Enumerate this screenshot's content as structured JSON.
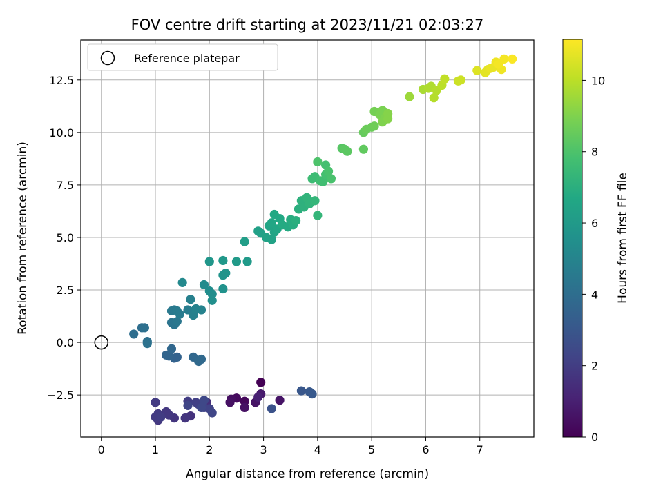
{
  "chart_data": {
    "type": "scatter",
    "title": "FOV centre drift starting at 2023/11/21 02:03:27",
    "xlabel": "Angular distance from reference (arcmin)",
    "ylabel": "Rotation from reference (arcmin)",
    "xlim": [
      -0.38,
      8.0
    ],
    "ylim": [
      -4.5,
      14.4
    ],
    "xticks": [
      0,
      1,
      2,
      3,
      4,
      5,
      6,
      7
    ],
    "yticks": [
      -2.5,
      0.0,
      2.5,
      5.0,
      7.5,
      10.0,
      12.5
    ],
    "ytick_labels": [
      "−2.5",
      "0.0",
      "2.5",
      "5.0",
      "7.5",
      "10.0",
      "12.5"
    ],
    "grid": true,
    "legend_position": "top-left",
    "legend_entries": [
      "Reference platepar"
    ],
    "reference_point": {
      "x": 0,
      "y": 0
    },
    "colormap": "viridis",
    "colorbar": {
      "label": "Hours from first FF file",
      "range": [
        0,
        11.15
      ],
      "ticks": [
        0,
        2,
        4,
        6,
        8,
        10
      ]
    },
    "points": [
      {
        "x": 2.95,
        "y": -1.9,
        "t": 0.0
      },
      {
        "x": 2.65,
        "y": -2.8,
        "t": 0.2
      },
      {
        "x": 2.5,
        "y": -2.65,
        "t": 0.3
      },
      {
        "x": 2.4,
        "y": -2.7,
        "t": 0.4
      },
      {
        "x": 2.38,
        "y": -2.85,
        "t": 0.5
      },
      {
        "x": 2.65,
        "y": -3.1,
        "t": 0.5
      },
      {
        "x": 2.85,
        "y": -2.85,
        "t": 0.6
      },
      {
        "x": 3.3,
        "y": -2.75,
        "t": 0.6
      },
      {
        "x": 2.95,
        "y": -2.45,
        "t": 0.8
      },
      {
        "x": 2.9,
        "y": -2.6,
        "t": 1.0
      },
      {
        "x": 1.95,
        "y": -2.85,
        "t": 1.5
      },
      {
        "x": 1.65,
        "y": -3.5,
        "t": 1.6
      },
      {
        "x": 1.55,
        "y": -3.6,
        "t": 1.7
      },
      {
        "x": 1.35,
        "y": -3.6,
        "t": 1.7
      },
      {
        "x": 1.25,
        "y": -3.45,
        "t": 1.8
      },
      {
        "x": 1.2,
        "y": -3.3,
        "t": 1.8
      },
      {
        "x": 1.05,
        "y": -3.7,
        "t": 1.8
      },
      {
        "x": 1.0,
        "y": -3.55,
        "t": 1.9
      },
      {
        "x": 1.05,
        "y": -3.4,
        "t": 1.9
      },
      {
        "x": 1.0,
        "y": -2.85,
        "t": 1.9
      },
      {
        "x": 1.1,
        "y": -3.55,
        "t": 2.0
      },
      {
        "x": 1.6,
        "y": -2.8,
        "t": 2.0
      },
      {
        "x": 1.75,
        "y": -2.85,
        "t": 2.1
      },
      {
        "x": 1.8,
        "y": -2.95,
        "t": 2.1
      },
      {
        "x": 1.9,
        "y": -3.1,
        "t": 2.2
      },
      {
        "x": 2.0,
        "y": -3.15,
        "t": 2.2
      },
      {
        "x": 2.05,
        "y": -3.35,
        "t": 2.3
      },
      {
        "x": 1.6,
        "y": -3.0,
        "t": 2.3
      },
      {
        "x": 1.85,
        "y": -3.1,
        "t": 2.4
      },
      {
        "x": 1.9,
        "y": -2.75,
        "t": 2.4
      },
      {
        "x": 3.15,
        "y": -3.15,
        "t": 2.8
      },
      {
        "x": 3.7,
        "y": -2.3,
        "t": 3.0
      },
      {
        "x": 3.85,
        "y": -2.35,
        "t": 3.1
      },
      {
        "x": 3.9,
        "y": -2.45,
        "t": 3.1
      },
      {
        "x": 1.4,
        "y": -0.7,
        "t": 3.5
      },
      {
        "x": 1.35,
        "y": -0.75,
        "t": 3.5
      },
      {
        "x": 1.25,
        "y": -0.65,
        "t": 3.6
      },
      {
        "x": 1.2,
        "y": -0.6,
        "t": 3.6
      },
      {
        "x": 1.3,
        "y": -0.3,
        "t": 3.7
      },
      {
        "x": 1.7,
        "y": -0.7,
        "t": 3.7
      },
      {
        "x": 1.8,
        "y": -0.9,
        "t": 3.8
      },
      {
        "x": 1.85,
        "y": -0.8,
        "t": 3.8
      },
      {
        "x": 0.6,
        "y": 0.4,
        "t": 4.0
      },
      {
        "x": 0.75,
        "y": 0.7,
        "t": 4.0
      },
      {
        "x": 0.8,
        "y": 0.7,
        "t": 4.1
      },
      {
        "x": 0.85,
        "y": 0.05,
        "t": 4.1
      },
      {
        "x": 0.85,
        "y": -0.05,
        "t": 4.2
      },
      {
        "x": 1.35,
        "y": 0.85,
        "t": 4.3
      },
      {
        "x": 1.3,
        "y": 0.95,
        "t": 4.3
      },
      {
        "x": 1.4,
        "y": 1.0,
        "t": 4.4
      },
      {
        "x": 1.3,
        "y": 1.5,
        "t": 4.5
      },
      {
        "x": 1.35,
        "y": 1.55,
        "t": 4.5
      },
      {
        "x": 1.4,
        "y": 1.5,
        "t": 4.6
      },
      {
        "x": 1.45,
        "y": 1.35,
        "t": 4.6
      },
      {
        "x": 1.6,
        "y": 1.55,
        "t": 4.7
      },
      {
        "x": 1.65,
        "y": 2.05,
        "t": 4.8
      },
      {
        "x": 1.7,
        "y": 1.3,
        "t": 4.8
      },
      {
        "x": 1.75,
        "y": 1.6,
        "t": 4.9
      },
      {
        "x": 1.85,
        "y": 1.55,
        "t": 4.9
      },
      {
        "x": 1.5,
        "y": 2.85,
        "t": 5.2
      },
      {
        "x": 1.9,
        "y": 2.75,
        "t": 5.3
      },
      {
        "x": 2.0,
        "y": 2.45,
        "t": 5.4
      },
      {
        "x": 2.05,
        "y": 2.3,
        "t": 5.4
      },
      {
        "x": 2.05,
        "y": 2.0,
        "t": 5.5
      },
      {
        "x": 2.25,
        "y": 2.55,
        "t": 5.6
      },
      {
        "x": 2.25,
        "y": 3.2,
        "t": 5.7
      },
      {
        "x": 2.3,
        "y": 3.3,
        "t": 5.7
      },
      {
        "x": 2.0,
        "y": 3.85,
        "t": 5.8
      },
      {
        "x": 2.25,
        "y": 3.9,
        "t": 5.9
      },
      {
        "x": 2.5,
        "y": 3.85,
        "t": 6.0
      },
      {
        "x": 2.7,
        "y": 3.85,
        "t": 6.0
      },
      {
        "x": 2.65,
        "y": 4.8,
        "t": 6.2
      },
      {
        "x": 2.9,
        "y": 5.3,
        "t": 6.3
      },
      {
        "x": 2.95,
        "y": 5.2,
        "t": 6.3
      },
      {
        "x": 3.05,
        "y": 5.0,
        "t": 6.4
      },
      {
        "x": 3.15,
        "y": 4.9,
        "t": 6.4
      },
      {
        "x": 3.2,
        "y": 5.25,
        "t": 6.5
      },
      {
        "x": 3.1,
        "y": 5.55,
        "t": 6.5
      },
      {
        "x": 3.15,
        "y": 5.7,
        "t": 6.6
      },
      {
        "x": 3.25,
        "y": 5.4,
        "t": 6.6
      },
      {
        "x": 3.3,
        "y": 5.9,
        "t": 6.7
      },
      {
        "x": 3.2,
        "y": 6.1,
        "t": 6.7
      },
      {
        "x": 3.35,
        "y": 5.6,
        "t": 6.8
      },
      {
        "x": 3.45,
        "y": 5.5,
        "t": 6.8
      },
      {
        "x": 3.5,
        "y": 5.85,
        "t": 6.9
      },
      {
        "x": 3.55,
        "y": 5.6,
        "t": 6.9
      },
      {
        "x": 3.6,
        "y": 5.8,
        "t": 7.0
      },
      {
        "x": 3.65,
        "y": 6.35,
        "t": 7.0
      },
      {
        "x": 3.7,
        "y": 6.75,
        "t": 7.1
      },
      {
        "x": 3.75,
        "y": 6.45,
        "t": 7.1
      },
      {
        "x": 3.8,
        "y": 6.9,
        "t": 7.2
      },
      {
        "x": 3.85,
        "y": 6.6,
        "t": 7.2
      },
      {
        "x": 3.95,
        "y": 6.75,
        "t": 7.3
      },
      {
        "x": 4.0,
        "y": 6.05,
        "t": 7.3
      },
      {
        "x": 3.9,
        "y": 7.8,
        "t": 7.6
      },
      {
        "x": 3.95,
        "y": 7.9,
        "t": 7.6
      },
      {
        "x": 4.05,
        "y": 7.7,
        "t": 7.7
      },
      {
        "x": 4.1,
        "y": 7.65,
        "t": 7.7
      },
      {
        "x": 4.15,
        "y": 8.0,
        "t": 7.8
      },
      {
        "x": 4.15,
        "y": 8.45,
        "t": 7.8
      },
      {
        "x": 4.2,
        "y": 8.15,
        "t": 7.9
      },
      {
        "x": 4.25,
        "y": 7.8,
        "t": 7.9
      },
      {
        "x": 4.0,
        "y": 8.6,
        "t": 8.0
      },
      {
        "x": 4.45,
        "y": 9.25,
        "t": 8.2
      },
      {
        "x": 4.5,
        "y": 9.2,
        "t": 8.3
      },
      {
        "x": 4.55,
        "y": 9.1,
        "t": 8.3
      },
      {
        "x": 4.85,
        "y": 9.2,
        "t": 8.4
      },
      {
        "x": 4.85,
        "y": 10.0,
        "t": 8.5
      },
      {
        "x": 4.9,
        "y": 10.15,
        "t": 8.6
      },
      {
        "x": 5.0,
        "y": 10.25,
        "t": 8.6
      },
      {
        "x": 5.05,
        "y": 10.3,
        "t": 8.7
      },
      {
        "x": 5.05,
        "y": 11.0,
        "t": 8.8
      },
      {
        "x": 5.15,
        "y": 10.85,
        "t": 8.9
      },
      {
        "x": 5.2,
        "y": 11.05,
        "t": 8.9
      },
      {
        "x": 5.25,
        "y": 10.7,
        "t": 9.0
      },
      {
        "x": 5.2,
        "y": 10.5,
        "t": 9.0
      },
      {
        "x": 5.3,
        "y": 10.9,
        "t": 9.1
      },
      {
        "x": 5.3,
        "y": 10.65,
        "t": 9.1
      },
      {
        "x": 5.7,
        "y": 11.7,
        "t": 9.5
      },
      {
        "x": 5.95,
        "y": 12.05,
        "t": 9.7
      },
      {
        "x": 6.05,
        "y": 12.1,
        "t": 9.8
      },
      {
        "x": 6.1,
        "y": 12.2,
        "t": 9.8
      },
      {
        "x": 6.15,
        "y": 11.65,
        "t": 9.9
      },
      {
        "x": 6.2,
        "y": 12.0,
        "t": 9.9
      },
      {
        "x": 6.3,
        "y": 12.25,
        "t": 10.0
      },
      {
        "x": 6.35,
        "y": 12.55,
        "t": 10.1
      },
      {
        "x": 6.6,
        "y": 12.45,
        "t": 10.3
      },
      {
        "x": 6.65,
        "y": 12.5,
        "t": 10.3
      },
      {
        "x": 6.95,
        "y": 12.95,
        "t": 10.6
      },
      {
        "x": 7.1,
        "y": 12.85,
        "t": 10.7
      },
      {
        "x": 7.15,
        "y": 13.0,
        "t": 10.7
      },
      {
        "x": 7.2,
        "y": 13.05,
        "t": 10.8
      },
      {
        "x": 7.25,
        "y": 13.1,
        "t": 10.8
      },
      {
        "x": 7.3,
        "y": 13.35,
        "t": 10.9
      },
      {
        "x": 7.4,
        "y": 13.0,
        "t": 10.9
      },
      {
        "x": 7.35,
        "y": 13.25,
        "t": 11.0
      },
      {
        "x": 7.45,
        "y": 13.5,
        "t": 11.0
      },
      {
        "x": 7.6,
        "y": 13.5,
        "t": 11.1
      }
    ]
  }
}
